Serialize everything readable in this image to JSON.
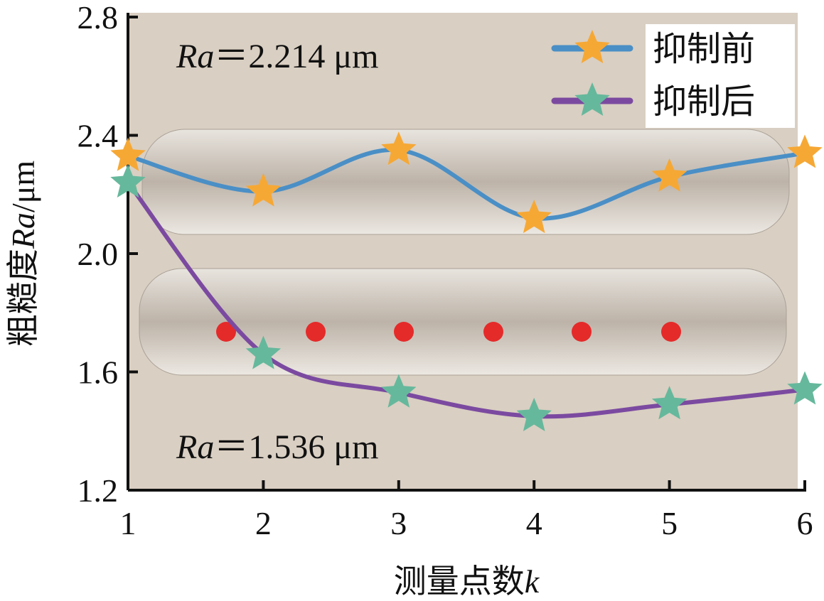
{
  "chart_data": {
    "type": "line",
    "y_label": [
      "粗糙度",
      "Ra",
      "/μm"
    ],
    "x_label": [
      "测量点数",
      "k"
    ],
    "annotations": [
      {
        "var": "Ra",
        "text": "＝2.214 μm"
      },
      {
        "var": "Ra",
        "text": "＝1.536 μm"
      }
    ],
    "x": [
      1,
      2,
      3,
      4,
      5,
      6
    ],
    "xlim": [
      1,
      6
    ],
    "xticks": [
      1,
      2,
      3,
      4,
      5,
      6
    ],
    "ylim": [
      1.2,
      2.8
    ],
    "yticks": [
      1.2,
      1.6,
      {
        "value": 2,
        "label": "2.0"
      },
      2.4,
      2.8
    ],
    "legend": "top-right",
    "series": [
      {
        "name": "抑制前",
        "color": "#4a8fc6",
        "marker_color": "#f6a835",
        "values": [
          2.33,
          2.21,
          2.35,
          2.12,
          2.26,
          2.34
        ]
      },
      {
        "name": "抑制后",
        "color": "#7b4aa0",
        "marker_color": "#66b89c",
        "values": [
          2.24,
          1.66,
          1.53,
          1.45,
          1.49,
          1.54
        ]
      }
    ]
  }
}
